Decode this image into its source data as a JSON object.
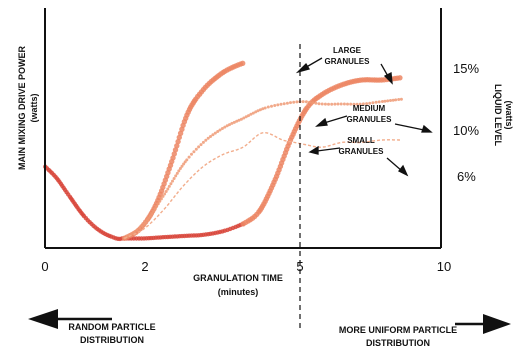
{
  "chart_data": {
    "type": "line",
    "title": "",
    "xlabel": "GRANULATION TIME",
    "xlabel_sub": "(minutes)",
    "ylabel": "MAIN MIXING DRIVE POWER",
    "ylabel_sub": "(watts)",
    "y2label": "LIQUID LEVEL",
    "y2label_sub": "(watts)",
    "xlim": [
      0,
      10
    ],
    "x_ticks": [
      0,
      2,
      5,
      10
    ],
    "x_tick_labels": [
      "0",
      "2",
      "5",
      "10"
    ],
    "y_right_ticks": [
      {
        "label": "15%",
        "level": 0.79
      },
      {
        "label": "10%",
        "level": 0.61
      },
      {
        "label": "6%",
        "level": 0.39
      }
    ],
    "vline_x": 5,
    "grid": false,
    "legend": "none",
    "colors": {
      "dark": "#d8453a",
      "large": "#ec8664",
      "medium": "#ef9a76",
      "small": "#f2ad8c",
      "axis": "#111111"
    },
    "series": [
      {
        "id": "common",
        "style": "dark-dotted",
        "points": [
          [
            0,
            0.34
          ],
          [
            0.3,
            0.29
          ],
          [
            0.6,
            0.22
          ],
          [
            1.0,
            0.13
          ],
          [
            1.4,
            0.07
          ],
          [
            1.8,
            0.04
          ],
          [
            2.0,
            0.04
          ],
          [
            2.5,
            0.04
          ],
          [
            3.0,
            0.045
          ],
          [
            3.5,
            0.05
          ],
          [
            4.0,
            0.055
          ],
          [
            4.5,
            0.07
          ],
          [
            5.0,
            0.1
          ]
        ]
      },
      {
        "id": "large-early",
        "style": "large-dotted",
        "points": [
          [
            2.0,
            0.04
          ],
          [
            2.4,
            0.08
          ],
          [
            2.8,
            0.18
          ],
          [
            3.2,
            0.36
          ],
          [
            3.6,
            0.56
          ],
          [
            4.0,
            0.66
          ],
          [
            4.4,
            0.72
          ],
          [
            4.7,
            0.75
          ],
          [
            5.0,
            0.77
          ]
        ]
      },
      {
        "id": "large-late",
        "style": "large-dotted",
        "points": [
          [
            5.0,
            0.1
          ],
          [
            5.4,
            0.15
          ],
          [
            5.8,
            0.28
          ],
          [
            6.2,
            0.45
          ],
          [
            6.6,
            0.58
          ],
          [
            7.0,
            0.64
          ],
          [
            7.5,
            0.68
          ],
          [
            8.0,
            0.7
          ],
          [
            8.5,
            0.7
          ],
          [
            9.0,
            0.71
          ]
        ]
      },
      {
        "id": "medium",
        "style": "medium-dotted",
        "points": [
          [
            2.0,
            0.04
          ],
          [
            2.5,
            0.1
          ],
          [
            3.0,
            0.22
          ],
          [
            3.5,
            0.35
          ],
          [
            4.0,
            0.44
          ],
          [
            4.5,
            0.5
          ],
          [
            5.0,
            0.54
          ],
          [
            5.5,
            0.58
          ],
          [
            6.0,
            0.6
          ],
          [
            6.5,
            0.61
          ],
          [
            7.0,
            0.6
          ],
          [
            7.5,
            0.6
          ],
          [
            8.0,
            0.6
          ],
          [
            8.5,
            0.61
          ],
          [
            9.0,
            0.62
          ]
        ]
      },
      {
        "id": "small",
        "style": "small-dashed",
        "points": [
          [
            2.0,
            0.04
          ],
          [
            2.5,
            0.08
          ],
          [
            3.0,
            0.16
          ],
          [
            3.5,
            0.26
          ],
          [
            4.0,
            0.34
          ],
          [
            4.5,
            0.39
          ],
          [
            5.0,
            0.42
          ],
          [
            5.5,
            0.48
          ],
          [
            6.0,
            0.45
          ],
          [
            6.3,
            0.44
          ],
          [
            6.6,
            0.43
          ],
          [
            7.0,
            0.42
          ],
          [
            7.5,
            0.44
          ],
          [
            8.0,
            0.44
          ],
          [
            8.5,
            0.45
          ],
          [
            9.0,
            0.45
          ]
        ]
      }
    ],
    "annotations": [
      {
        "id": "large",
        "lines": [
          "LARGE",
          "GRANULES"
        ]
      },
      {
        "id": "medium",
        "lines": [
          "MEDIUM",
          "GRANULES"
        ]
      },
      {
        "id": "small",
        "lines": [
          "SMALL",
          "GRANULES"
        ]
      }
    ],
    "bottom_left": [
      "RANDOM PARTICLE",
      "DISTRIBUTION"
    ],
    "bottom_right": [
      "MORE UNIFORM PARTICLE",
      "DISTRIBUTION"
    ]
  }
}
